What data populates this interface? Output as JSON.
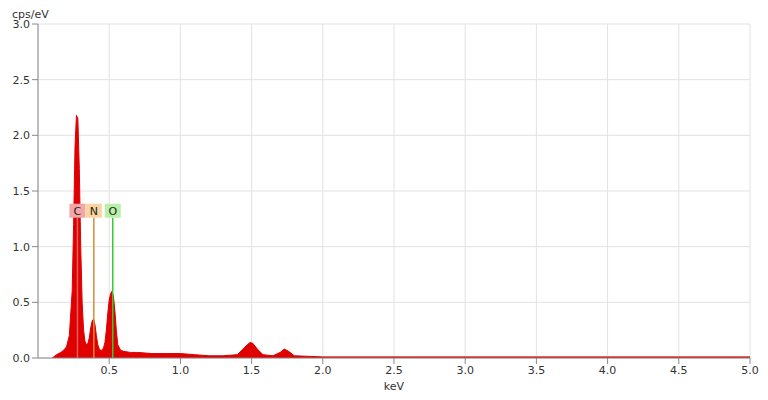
{
  "chart_data": {
    "type": "area",
    "y_label": "cps/eV",
    "x_label": "keV",
    "color": "#e00000",
    "grid": true,
    "x": [
      0.1,
      0.13,
      0.16,
      0.18,
      0.2,
      0.22,
      0.24,
      0.25,
      0.26,
      0.27,
      0.28,
      0.29,
      0.3,
      0.31,
      0.32,
      0.33,
      0.34,
      0.35,
      0.36,
      0.37,
      0.38,
      0.39,
      0.4,
      0.41,
      0.42,
      0.43,
      0.44,
      0.45,
      0.46,
      0.47,
      0.48,
      0.49,
      0.5,
      0.51,
      0.52,
      0.53,
      0.54,
      0.55,
      0.56,
      0.58,
      0.6,
      0.65,
      0.7,
      0.8,
      0.9,
      1.0,
      1.1,
      1.2,
      1.3,
      1.4,
      1.44,
      1.47,
      1.49,
      1.51,
      1.54,
      1.58,
      1.65,
      1.7,
      1.73,
      1.76,
      1.8,
      2.0,
      2.5,
      3.0,
      3.5,
      4.0,
      4.5,
      5.0
    ],
    "values": [
      0,
      0.03,
      0.05,
      0.07,
      0.1,
      0.2,
      0.6,
      1.2,
      1.9,
      2.18,
      2.15,
      1.7,
      1.0,
      0.5,
      0.25,
      0.15,
      0.12,
      0.13,
      0.18,
      0.27,
      0.33,
      0.35,
      0.3,
      0.2,
      0.12,
      0.08,
      0.07,
      0.07,
      0.09,
      0.14,
      0.25,
      0.4,
      0.52,
      0.58,
      0.6,
      0.55,
      0.42,
      0.25,
      0.12,
      0.07,
      0.06,
      0.05,
      0.05,
      0.04,
      0.04,
      0.04,
      0.03,
      0.02,
      0.02,
      0.03,
      0.08,
      0.12,
      0.14,
      0.13,
      0.08,
      0.03,
      0.02,
      0.05,
      0.08,
      0.06,
      0.02,
      0.01,
      0.01,
      0.01,
      0.01,
      0.01,
      0.01,
      0.01
    ],
    "xlim": [
      0,
      5
    ],
    "xticks": [
      {
        "value": 0.5,
        "label": "0.5"
      },
      {
        "value": 1,
        "label": "1.0"
      },
      {
        "value": 1.5,
        "label": "1.5"
      },
      {
        "value": 2,
        "label": "2.0"
      },
      {
        "value": 2.5,
        "label": "2.5"
      },
      {
        "value": 3,
        "label": "3.0"
      },
      {
        "value": 3.5,
        "label": "3.5"
      },
      {
        "value": 4,
        "label": "4.0"
      },
      {
        "value": 4.5,
        "label": "4.5"
      },
      {
        "value": 5,
        "label": "5.0"
      }
    ],
    "ylim": [
      0,
      3
    ],
    "yticks": [
      {
        "value": 0,
        "label": "0.0"
      },
      {
        "value": 0.5,
        "label": "0.5"
      },
      {
        "value": 1,
        "label": "1.0"
      },
      {
        "value": 1.5,
        "label": "1.5"
      },
      {
        "value": 2,
        "label": "2.0"
      },
      {
        "value": 2.5,
        "label": "2.5"
      },
      {
        "value": 3,
        "label": "3.0"
      }
    ],
    "annotations": [
      {
        "text": "C",
        "x": 0.277,
        "color": "#e06060",
        "label_color": "#f4a6a6"
      },
      {
        "text": "N",
        "x": 0.392,
        "color": "#d98c3a",
        "label_color": "#f8d4a0"
      },
      {
        "text": "O",
        "x": 0.525,
        "color": "#33cc33",
        "label_color": "#b8f0a8"
      }
    ]
  }
}
